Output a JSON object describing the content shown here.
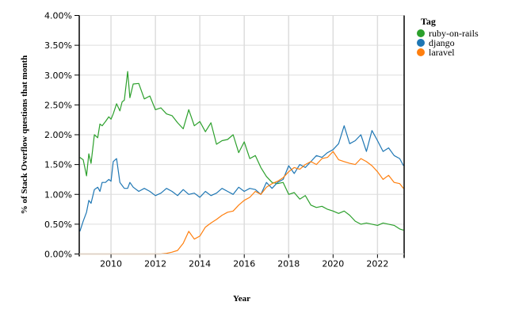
{
  "chart_data": {
    "type": "line",
    "title": "",
    "xlabel": "Year",
    "ylabel": "% of Stack Overflow questions that month",
    "xlim": [
      2008.57,
      2023.2
    ],
    "ylim": [
      0,
      4.0
    ],
    "grid": true,
    "legend_position": "right",
    "legend_title": "Tag",
    "x_ticks": [
      "2010",
      "2012",
      "2014",
      "2016",
      "2018",
      "2020",
      "2022"
    ],
    "y_ticks": [
      "0.00%",
      "0.50%",
      "1.00%",
      "1.50%",
      "2.00%",
      "2.50%",
      "3.00%",
      "3.50%",
      "4.00%"
    ],
    "x": [
      2008.6,
      2008.75,
      2008.9,
      2009.0,
      2009.1,
      2009.25,
      2009.4,
      2009.5,
      2009.6,
      2009.75,
      2009.9,
      2010.0,
      2010.1,
      2010.25,
      2010.4,
      2010.5,
      2010.6,
      2010.75,
      2010.85,
      2011.0,
      2011.25,
      2011.5,
      2011.75,
      2012.0,
      2012.25,
      2012.5,
      2012.75,
      2013.0,
      2013.25,
      2013.5,
      2013.75,
      2014.0,
      2014.25,
      2014.5,
      2014.75,
      2015.0,
      2015.25,
      2015.5,
      2015.75,
      2016.0,
      2016.25,
      2016.5,
      2016.75,
      2017.0,
      2017.25,
      2017.5,
      2017.75,
      2018.0,
      2018.25,
      2018.5,
      2018.75,
      2019.0,
      2019.25,
      2019.5,
      2019.75,
      2020.0,
      2020.25,
      2020.5,
      2020.75,
      2021.0,
      2021.25,
      2021.5,
      2021.75,
      2022.0,
      2022.25,
      2022.5,
      2022.75,
      2023.0,
      2023.17
    ],
    "series": [
      {
        "name": "ruby-on-rails",
        "color": "#2ca02c",
        "values": [
          1.62,
          1.58,
          1.31,
          1.68,
          1.52,
          2.0,
          1.95,
          2.18,
          2.15,
          2.22,
          2.3,
          2.26,
          2.35,
          2.52,
          2.4,
          2.55,
          2.58,
          3.06,
          2.62,
          2.85,
          2.86,
          2.6,
          2.65,
          2.42,
          2.45,
          2.35,
          2.32,
          2.2,
          2.1,
          2.42,
          2.15,
          2.22,
          2.05,
          2.2,
          1.84,
          1.9,
          1.92,
          2.0,
          1.7,
          1.88,
          1.6,
          1.65,
          1.45,
          1.3,
          1.2,
          1.18,
          1.2,
          1.0,
          1.03,
          0.92,
          0.98,
          0.82,
          0.78,
          0.8,
          0.75,
          0.72,
          0.68,
          0.72,
          0.65,
          0.55,
          0.5,
          0.52,
          0.5,
          0.48,
          0.52,
          0.5,
          0.48,
          0.42,
          0.4
        ]
      },
      {
        "name": "django",
        "color": "#1f77b4",
        "values": [
          0.38,
          0.55,
          0.7,
          0.9,
          0.85,
          1.08,
          1.12,
          1.05,
          1.2,
          1.2,
          1.25,
          1.22,
          1.55,
          1.6,
          1.2,
          1.15,
          1.1,
          1.1,
          1.2,
          1.12,
          1.05,
          1.1,
          1.05,
          0.98,
          1.02,
          1.1,
          1.05,
          0.98,
          1.08,
          1.0,
          1.02,
          0.95,
          1.05,
          0.98,
          1.02,
          1.1,
          1.05,
          1.0,
          1.12,
          1.05,
          1.1,
          1.08,
          1.0,
          1.2,
          1.1,
          1.2,
          1.25,
          1.48,
          1.35,
          1.5,
          1.45,
          1.55,
          1.65,
          1.62,
          1.7,
          1.75,
          1.85,
          2.15,
          1.85,
          1.9,
          2.0,
          1.72,
          2.07,
          1.9,
          1.72,
          1.78,
          1.65,
          1.6,
          1.48
        ]
      },
      {
        "name": "laravel",
        "color": "#ff7f0e",
        "values": [
          0.0,
          0.0,
          0.0,
          0.0,
          0.0,
          0.0,
          0.0,
          0.0,
          0.0,
          0.0,
          0.0,
          0.0,
          0.0,
          0.0,
          0.0,
          0.0,
          0.0,
          0.0,
          0.0,
          0.0,
          0.0,
          0.0,
          0.0,
          0.0,
          0.0,
          0.01,
          0.03,
          0.06,
          0.18,
          0.38,
          0.25,
          0.3,
          0.45,
          0.52,
          0.58,
          0.65,
          0.7,
          0.72,
          0.82,
          0.9,
          0.95,
          1.05,
          1.0,
          1.12,
          1.18,
          1.22,
          1.28,
          1.38,
          1.45,
          1.42,
          1.5,
          1.55,
          1.5,
          1.6,
          1.62,
          1.72,
          1.58,
          1.55,
          1.52,
          1.5,
          1.6,
          1.55,
          1.48,
          1.38,
          1.25,
          1.32,
          1.2,
          1.18,
          1.1
        ]
      }
    ]
  }
}
